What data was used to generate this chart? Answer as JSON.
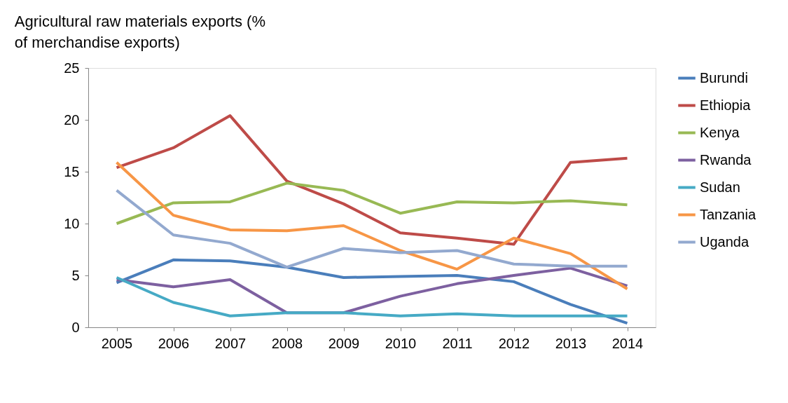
{
  "chart_data": {
    "type": "line",
    "ylabel": "Agricultural raw materials exports (% of merchandise exports)",
    "categories": [
      "2005",
      "2006",
      "2007",
      "2008",
      "2009",
      "2010",
      "2011",
      "2012",
      "2013",
      "2014"
    ],
    "series": [
      {
        "name": "Burundi",
        "color": "#4a7ebb",
        "values": [
          4.3,
          6.5,
          6.4,
          5.8,
          4.8,
          4.9,
          5.0,
          4.4,
          2.2,
          0.4
        ]
      },
      {
        "name": "Ethiopia",
        "color": "#be4b48",
        "values": [
          15.4,
          17.3,
          20.4,
          14.1,
          11.9,
          9.1,
          8.6,
          8.0,
          15.9,
          16.3
        ]
      },
      {
        "name": "Kenya",
        "color": "#98b954",
        "values": [
          10.0,
          12.0,
          12.1,
          13.9,
          13.2,
          11.0,
          12.1,
          12.0,
          12.2,
          11.8
        ]
      },
      {
        "name": "Rwanda",
        "color": "#7d60a0",
        "values": [
          4.6,
          3.9,
          4.6,
          1.4,
          1.4,
          3.0,
          4.2,
          5.0,
          5.7,
          4.0
        ]
      },
      {
        "name": "Sudan",
        "color": "#46aac5",
        "values": [
          4.8,
          2.4,
          1.1,
          1.4,
          1.4,
          1.1,
          1.3,
          1.1,
          1.1,
          1.1
        ]
      },
      {
        "name": "Tanzania",
        "color": "#f79646",
        "values": [
          15.9,
          10.8,
          9.4,
          9.3,
          9.8,
          7.4,
          5.6,
          8.6,
          7.1,
          3.7
        ]
      },
      {
        "name": "Uganda",
        "color": "#93a9cf",
        "values": [
          13.2,
          8.9,
          8.1,
          5.8,
          7.6,
          7.2,
          7.4,
          6.1,
          5.9,
          5.9
        ]
      }
    ],
    "ylim": [
      0,
      25
    ],
    "yticks": [
      0,
      5,
      10,
      15,
      20,
      25
    ],
    "grid": false,
    "legend": "right",
    "marker": "none",
    "line_style": "solid"
  }
}
